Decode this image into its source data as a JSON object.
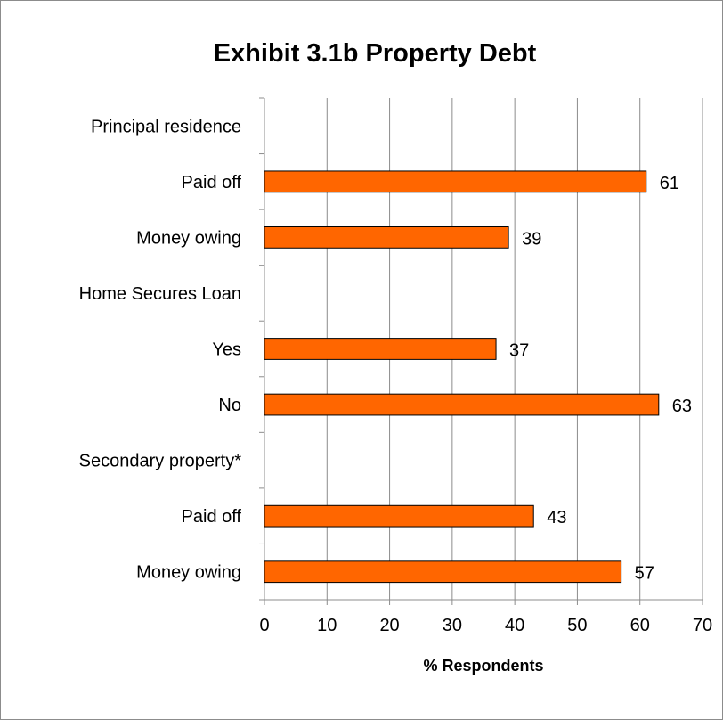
{
  "chart_data": {
    "type": "bar",
    "orientation": "horizontal",
    "title": "Exhibit 3.1b Property Debt",
    "xlabel": "% Respondents",
    "ylabel": "",
    "xlim": [
      0,
      70
    ],
    "x_ticks": [
      "0",
      "10",
      "20",
      "30",
      "40",
      "50",
      "60",
      "70"
    ],
    "grid": "vertical",
    "legend": "none",
    "bar_color": "#ff6600",
    "bar_border_color": "#000000",
    "categories": [
      "Principal residence",
      "Paid off",
      "Money owing",
      "Home Secures Loan",
      "Yes",
      "No",
      "Secondary property*",
      "Paid off",
      "Money owing"
    ],
    "values": [
      null,
      61,
      39,
      null,
      37,
      63,
      null,
      43,
      57
    ]
  }
}
